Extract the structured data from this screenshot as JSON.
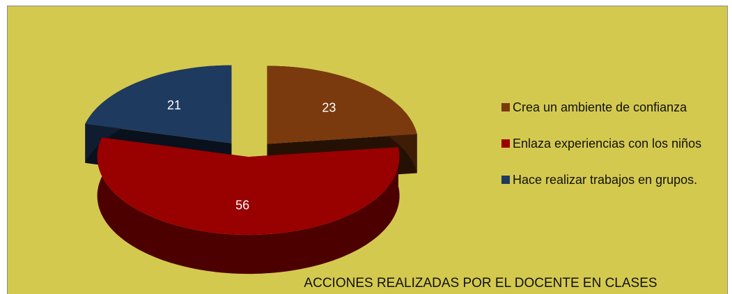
{
  "chart_data": {
    "type": "pie3d",
    "title": "ACCIONES REALIZADAS POR EL DOCENTE EN CLASES",
    "categories": [
      "Crea un ambiente de confianza",
      "Enlaza experiencias con los niños",
      "Hace realizar trabajos en grupos."
    ],
    "values": [
      23,
      56,
      21
    ],
    "colors": [
      "#7b3a0e",
      "#990000",
      "#1f3a5f"
    ],
    "legend": "right"
  }
}
